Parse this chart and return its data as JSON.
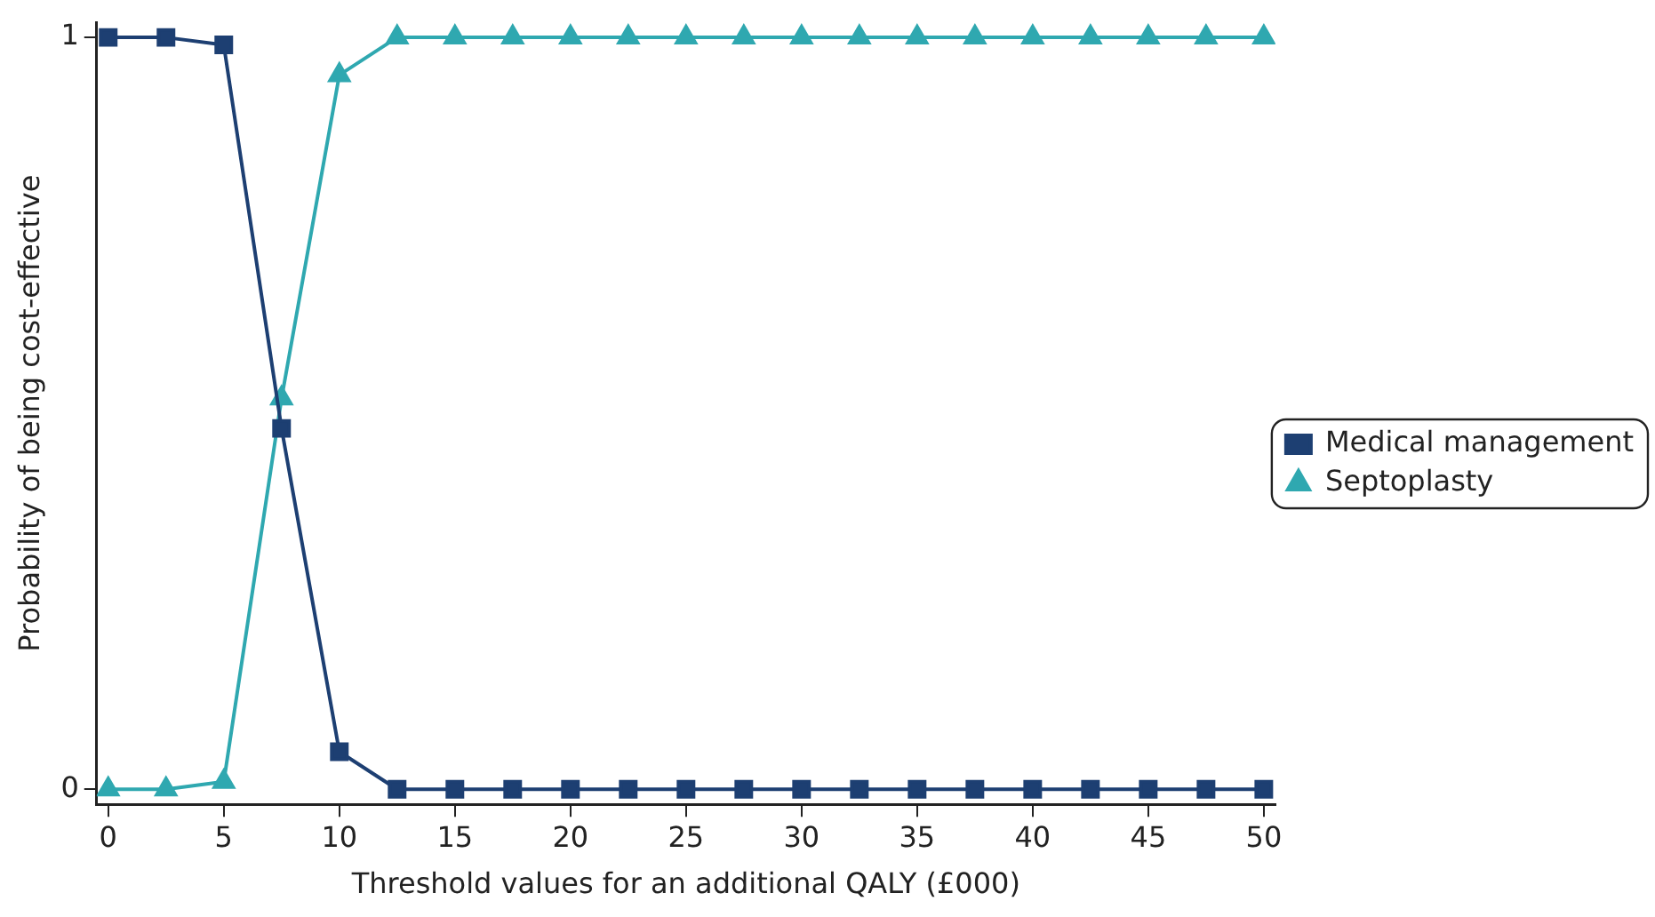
{
  "chart_data": {
    "type": "line",
    "xlabel": "Threshold values for an additional QALY (£000)",
    "ylabel": "Probability of being cost-effective",
    "x": [
      0,
      2.5,
      5,
      7.5,
      10,
      12.5,
      15,
      17.5,
      20,
      22.5,
      25,
      27.5,
      30,
      32.5,
      35,
      37.5,
      40,
      42.5,
      45,
      47.5,
      50
    ],
    "series": [
      {
        "name": "Medical management",
        "color": "#1d3f72",
        "marker": "square",
        "values": [
          1,
          1,
          0.99,
          0.48,
          0.05,
          0,
          0,
          0,
          0,
          0,
          0,
          0,
          0,
          0,
          0,
          0,
          0,
          0,
          0,
          0,
          0
        ]
      },
      {
        "name": "Septoplasty",
        "color": "#2fa8b0",
        "marker": "triangle",
        "values": [
          0,
          0,
          0.01,
          0.52,
          0.95,
          1,
          1,
          1,
          1,
          1,
          1,
          1,
          1,
          1,
          1,
          1,
          1,
          1,
          1,
          1,
          1
        ]
      }
    ],
    "xlim": [
      -0.5,
      50.5
    ],
    "xticks": [
      0,
      5,
      10,
      15,
      20,
      25,
      30,
      35,
      40,
      45,
      50
    ],
    "ylim": [
      -0.02,
      1.02
    ],
    "yticks": [
      0,
      1
    ],
    "grid": false,
    "legend": "right",
    "line_style": "solid"
  }
}
